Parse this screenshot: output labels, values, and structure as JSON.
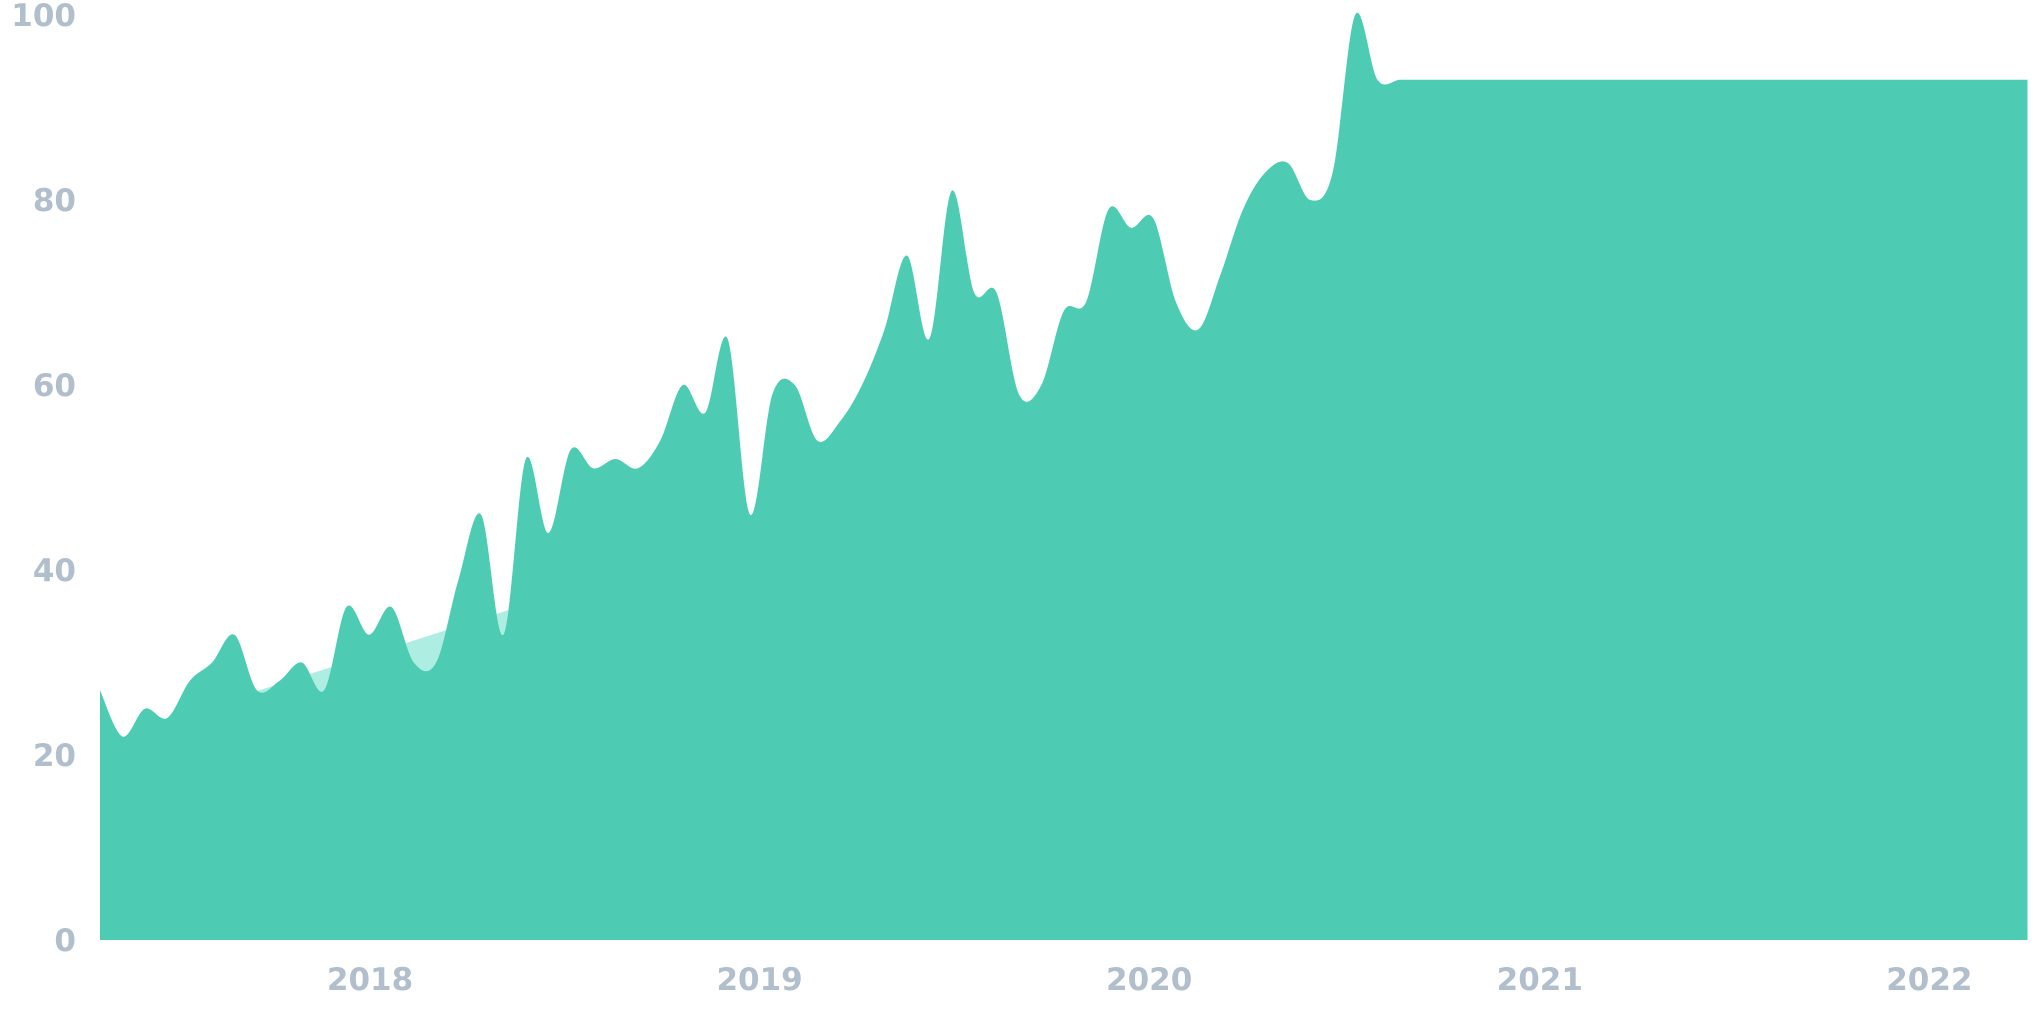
{
  "chart_data": {
    "type": "area",
    "title": "",
    "xlabel": "",
    "ylabel": "",
    "ylim": [
      0,
      100
    ],
    "grid": false,
    "legend": "none",
    "y_ticks": [
      0,
      20,
      40,
      60,
      80,
      100
    ],
    "y_tick_labels": [
      "0",
      "20",
      "40",
      "60",
      "80",
      "100"
    ],
    "x_ticks": [
      "2018-01-01",
      "2019-01-01",
      "2020-01-01",
      "2021-01-01",
      "2022-01-01"
    ],
    "x_tick_labels": [
      "2018",
      "2019",
      "2020",
      "2021",
      "2022"
    ],
    "x_range": [
      "2017-04-23",
      "2022-04-10"
    ],
    "colors": {
      "main_area": "#4ecbb3",
      "trend_area": "#aeeee2",
      "tick_text": "#b1becb"
    },
    "series": [
      {
        "role": "interest",
        "x": [
          "2017-04-23",
          "2017-05-14",
          "2017-06-04",
          "2017-06-25",
          "2017-07-16",
          "2017-08-06",
          "2017-08-27",
          "2017-09-17",
          "2017-10-08",
          "2017-10-29",
          "2017-11-19",
          "2017-12-10",
          "2017-12-31",
          "2018-01-21",
          "2018-02-11",
          "2018-03-04",
          "2018-03-25",
          "2018-04-15",
          "2018-05-06",
          "2018-05-27",
          "2018-06-17",
          "2018-07-08",
          "2018-07-29",
          "2018-08-19",
          "2018-09-09",
          "2018-09-30",
          "2018-10-21",
          "2018-11-11",
          "2018-12-02",
          "2018-12-23",
          "2019-01-13",
          "2019-02-03",
          "2019-02-24",
          "2019-03-17",
          "2019-04-07",
          "2019-04-28",
          "2019-05-19",
          "2019-06-09",
          "2019-06-30",
          "2019-07-21",
          "2019-08-11",
          "2019-09-01",
          "2019-09-22",
          "2019-10-13",
          "2019-11-03",
          "2019-11-24",
          "2019-12-15",
          "2020-01-05",
          "2020-01-26",
          "2020-02-16",
          "2020-03-08",
          "2020-03-29",
          "2020-04-19",
          "2020-05-10",
          "2020-05-31",
          "2020-06-21",
          "2020-07-12",
          "2020-08-02",
          "2020-08-23",
          "2020-09-13",
          "2020-10-04",
          "2020-10-25",
          "2020-11-15",
          "2020-12-06",
          "2020-12-27",
          "2021-01-17",
          "2021-02-07",
          "2021-02-28",
          "2021-03-21",
          "2021-04-11",
          "2021-05-02",
          "2021-05-23",
          "2021-06-13",
          "2021-07-04",
          "2021-07-25",
          "2021-08-15",
          "2021-09-05",
          "2021-09-26",
          "2021-10-17",
          "2021-11-07",
          "2021-11-28",
          "2021-12-19",
          "2022-01-09",
          "2022-01-30",
          "2022-02-20",
          "2022-03-13",
          "2022-04-03"
        ],
        "values": [
          27,
          22,
          25,
          24,
          28,
          30,
          33,
          27,
          28,
          30,
          27,
          36,
          33,
          36,
          30,
          30,
          39,
          46,
          33,
          52,
          44,
          53,
          51,
          52,
          51,
          54,
          60,
          57,
          65,
          46,
          59,
          60,
          54,
          56,
          60,
          66,
          74,
          65,
          81,
          70,
          70,
          59,
          60,
          68,
          69,
          79,
          77,
          78,
          69,
          66,
          72,
          79,
          83,
          84,
          80,
          83,
          100,
          93,
          93,
          93,
          93,
          93,
          93,
          93,
          93,
          93,
          93,
          93,
          93,
          93,
          93,
          93,
          93,
          93,
          93,
          93,
          93,
          93,
          93,
          93,
          93,
          93,
          93,
          93,
          93,
          93,
          93
        ]
      },
      {
        "role": "trend",
        "x": [
          "2017-06-04",
          "2022-01-23"
        ],
        "values": [
          23,
          86
        ]
      }
    ]
  }
}
